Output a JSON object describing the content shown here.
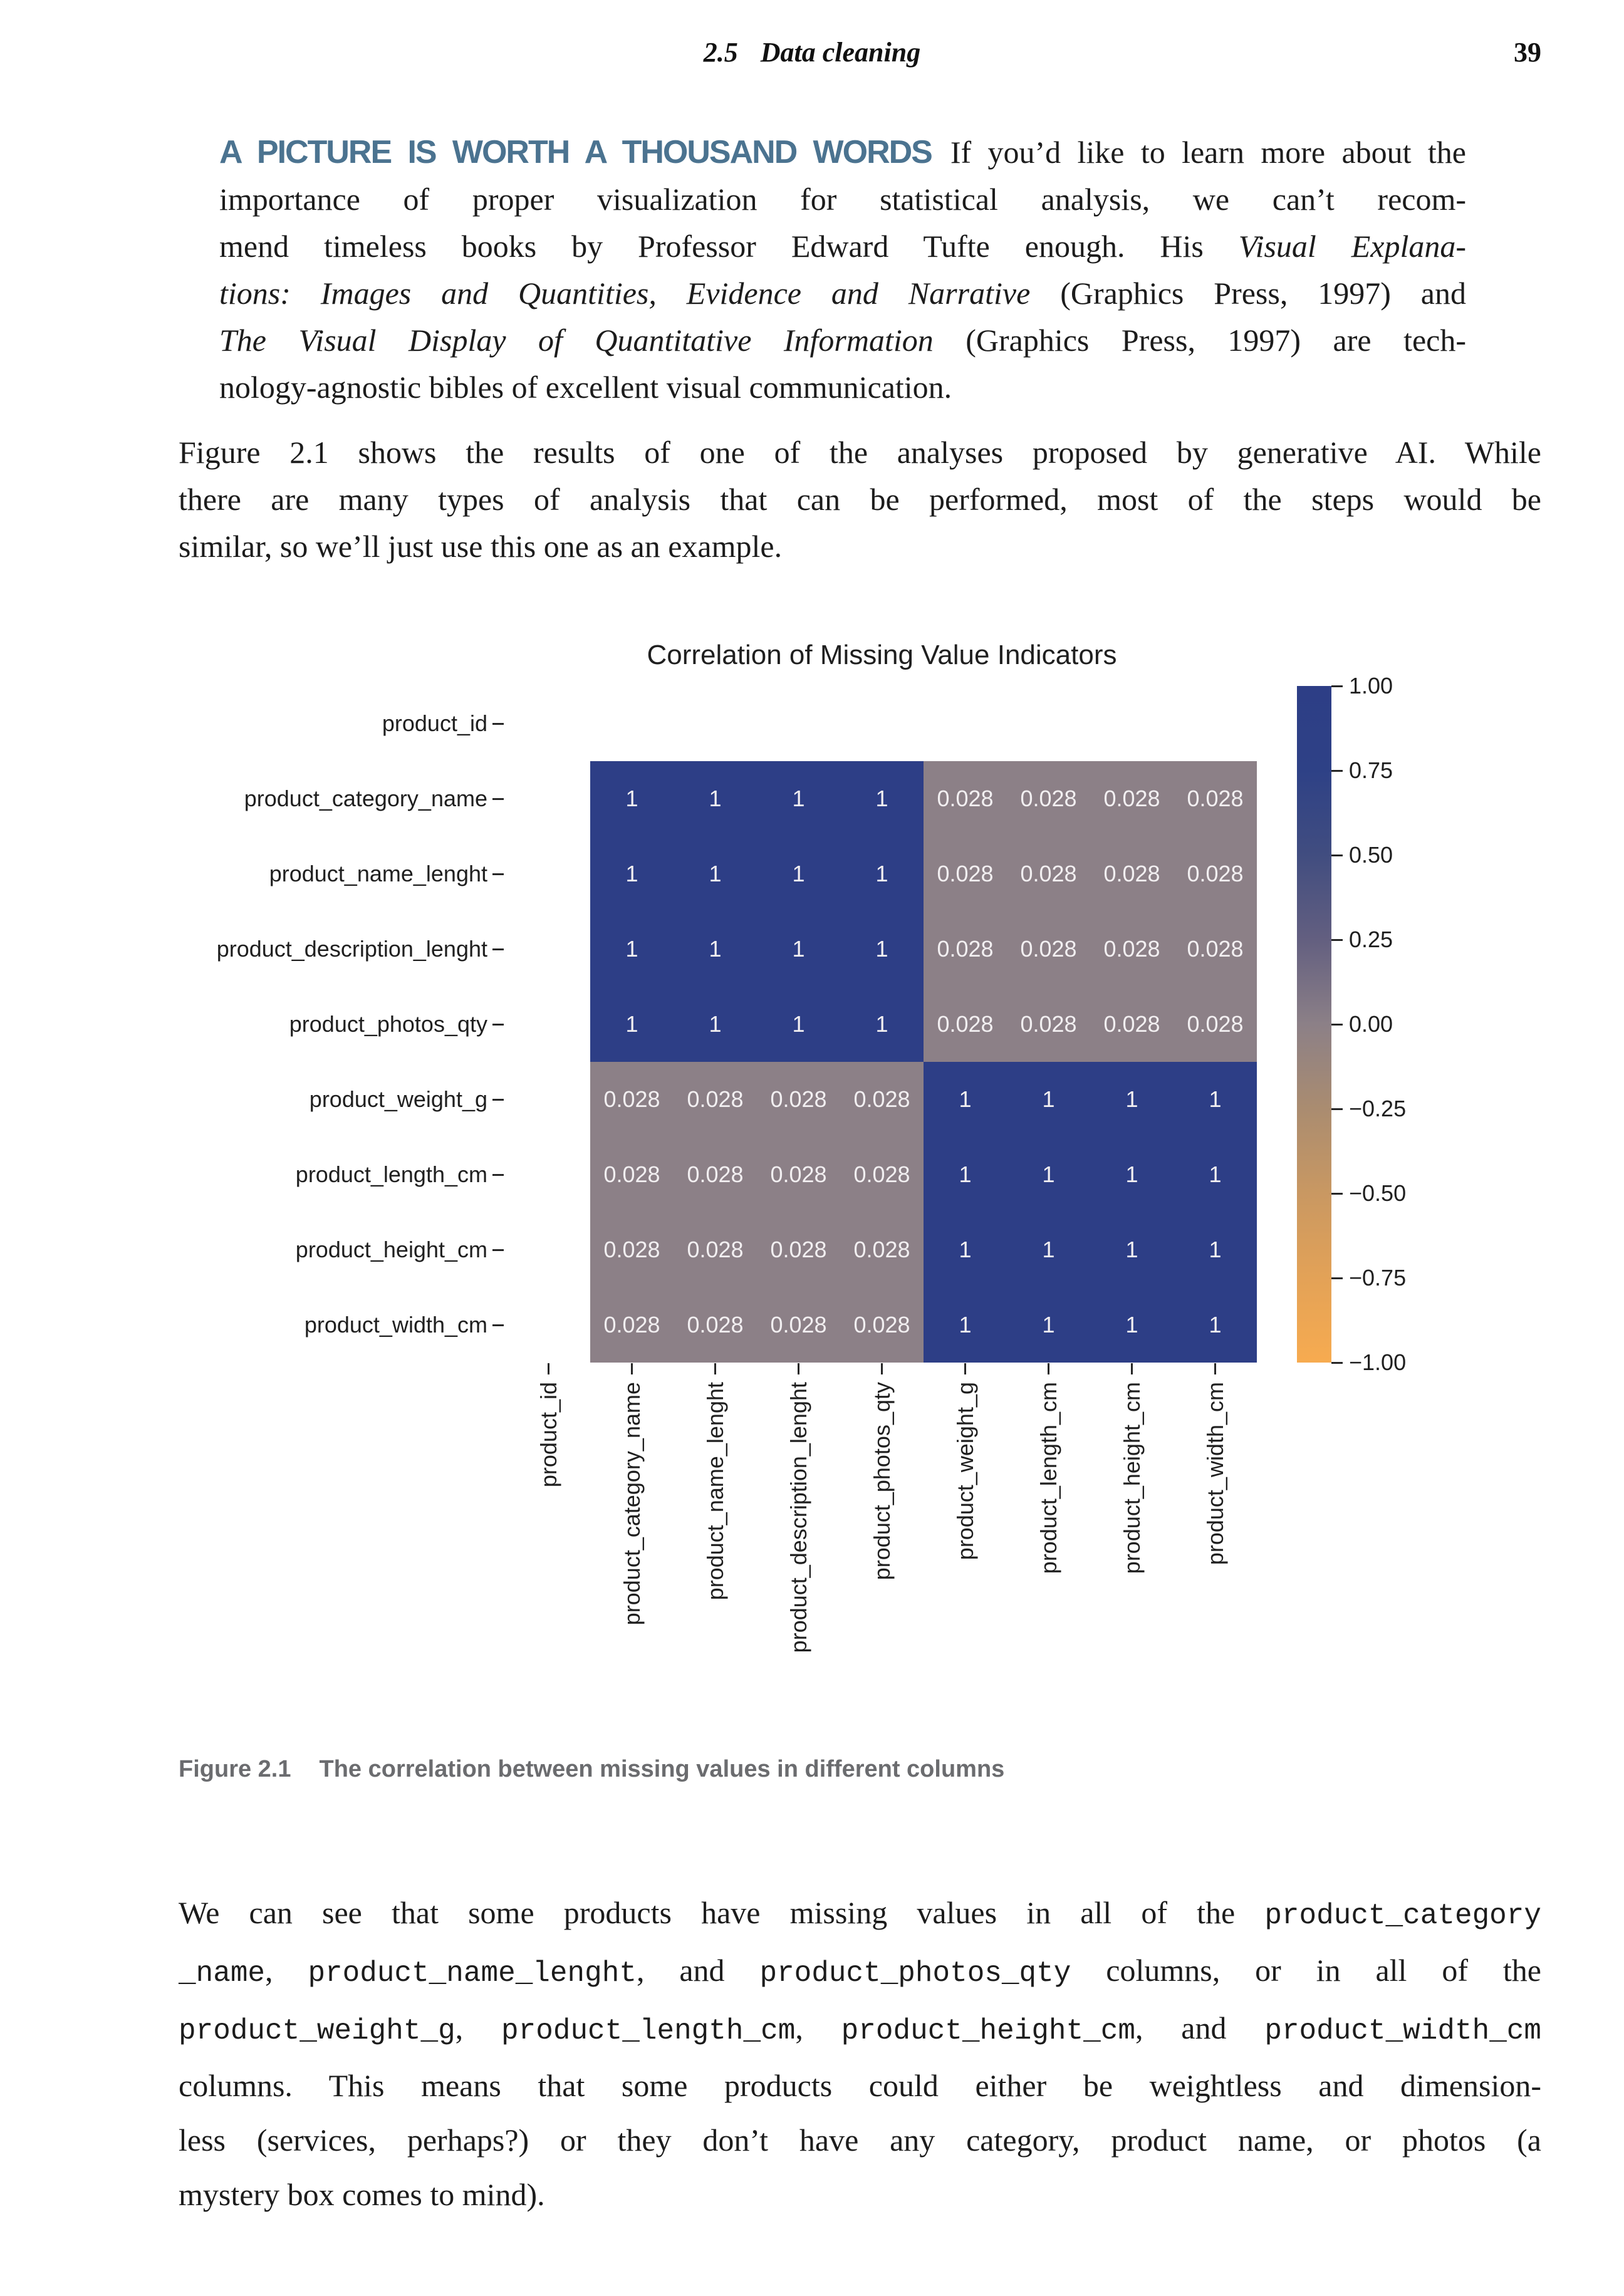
{
  "header": {
    "section": "2.5",
    "title": "Data cleaning",
    "page_number": "39"
  },
  "note": {
    "heading": "A PICTURE IS WORTH A THOUSAND WORDS",
    "heading_color": "#4b7390",
    "lines": [
      [
        {
          "s": "h",
          "t": "A PICTURE IS WORTH A THOUSAND WORDS"
        },
        {
          "s": "r",
          "t": "If you’d like to learn more about the"
        }
      ],
      [
        {
          "s": "r",
          "t": "importance of proper visualization for statistical analysis, we can’t recom-"
        }
      ],
      [
        {
          "s": "r",
          "t": "mend timeless books by Professor Edward Tufte enough. His "
        },
        {
          "s": "i",
          "t": "Visual Explana-"
        }
      ],
      [
        {
          "s": "i",
          "t": "tions: Images and Quantities, Evidence and Narrative"
        },
        {
          "s": "r",
          "t": " (Graphics Press, 1997) and"
        }
      ],
      [
        {
          "s": "i",
          "t": "The Visual Display of Quantitative Information"
        },
        {
          "s": "r",
          "t": " (Graphics Press, 1997) are tech-"
        }
      ],
      [
        {
          "s": "r",
          "t": "nology-agnostic bibles of excellent visual communication."
        }
      ]
    ]
  },
  "paragraph1": {
    "lines": [
      [
        {
          "s": "r",
          "t": "Figure 2.1 shows the results of one of the analyses proposed by generative AI. While"
        }
      ],
      [
        {
          "s": "r",
          "t": "there are many types of analysis that can be performed, most of the steps would be"
        }
      ],
      [
        {
          "s": "r",
          "t": "similar, so we’ll just use this one as an example."
        }
      ]
    ]
  },
  "chart_data": {
    "type": "heatmap",
    "title": "Correlation of Missing Value Indicators",
    "labels": [
      "product_id",
      "product_category_name",
      "product_name_lenght",
      "product_description_lenght",
      "product_photos_qty",
      "product_weight_g",
      "product_length_cm",
      "product_height_cm",
      "product_width_cm"
    ],
    "matrix": [
      [
        null,
        null,
        null,
        null,
        null,
        null,
        null,
        null,
        null
      ],
      [
        null,
        1,
        1,
        1,
        1,
        0.028,
        0.028,
        0.028,
        0.028
      ],
      [
        null,
        1,
        1,
        1,
        1,
        0.028,
        0.028,
        0.028,
        0.028
      ],
      [
        null,
        1,
        1,
        1,
        1,
        0.028,
        0.028,
        0.028,
        0.028
      ],
      [
        null,
        1,
        1,
        1,
        1,
        0.028,
        0.028,
        0.028,
        0.028
      ],
      [
        null,
        0.028,
        0.028,
        0.028,
        0.028,
        1,
        1,
        1,
        1
      ],
      [
        null,
        0.028,
        0.028,
        0.028,
        0.028,
        1,
        1,
        1,
        1
      ],
      [
        null,
        0.028,
        0.028,
        0.028,
        0.028,
        1,
        1,
        1,
        1
      ],
      [
        null,
        0.028,
        0.028,
        0.028,
        0.028,
        1,
        1,
        1,
        1
      ]
    ],
    "vmin": -1,
    "vmax": 1,
    "colorbar_ticks": [
      "1.00",
      "0.75",
      "0.50",
      "0.25",
      "0.00",
      "−0.25",
      "−0.50",
      "−0.75",
      "−1.00"
    ],
    "colors": {
      "high": "#2d3e86",
      "mid": "#8c8087",
      "low": "#f7ab50",
      "cell_text": "#f2eff1",
      "gradient_stops": [
        "#2d3e86",
        "#2e4186",
        "#414d80",
        "#635f80",
        "#8c8087",
        "#aa8c70",
        "#c99862",
        "#e3a257",
        "#f7ab50"
      ]
    },
    "legend_position": "right",
    "grid": false
  },
  "caption": {
    "label": "Figure 2.1",
    "text": "The correlation between missing values in different columns"
  },
  "paragraph2": {
    "lines": [
      [
        {
          "s": "r",
          "t": "We can see that some products have missing values in all of the "
        },
        {
          "s": "m",
          "t": "product_category"
        }
      ],
      [
        {
          "s": "m",
          "t": "_name"
        },
        {
          "s": "r",
          "t": ", "
        },
        {
          "s": "m",
          "t": "product_name_lenght"
        },
        {
          "s": "r",
          "t": ", and "
        },
        {
          "s": "m",
          "t": "product_photos_qty"
        },
        {
          "s": "r",
          "t": " columns, or in all of the"
        }
      ],
      [
        {
          "s": "m",
          "t": "product_weight_g"
        },
        {
          "s": "r",
          "t": ", "
        },
        {
          "s": "m",
          "t": "product_length_cm"
        },
        {
          "s": "r",
          "t": ", "
        },
        {
          "s": "m",
          "t": "product_height_cm"
        },
        {
          "s": "r",
          "t": ", and "
        },
        {
          "s": "m",
          "t": "product_width_cm"
        }
      ],
      [
        {
          "s": "r",
          "t": "columns. This means that some products could either be weightless and dimension-"
        }
      ],
      [
        {
          "s": "r",
          "t": "less (services, perhaps?) or they don’t have any category, product name, or photos (a"
        }
      ],
      [
        {
          "s": "r",
          "t": "mystery box comes to mind)."
        }
      ]
    ]
  }
}
